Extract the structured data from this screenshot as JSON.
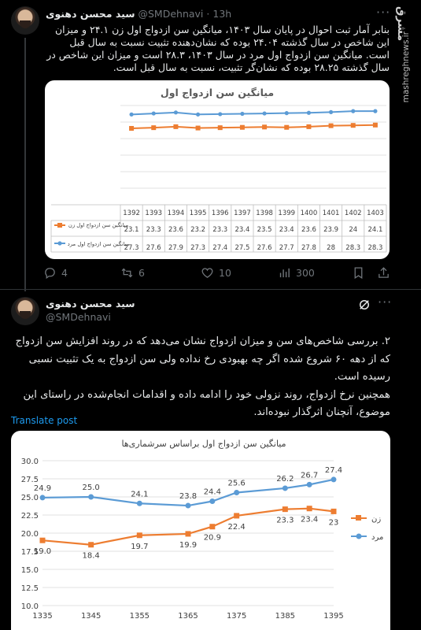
{
  "tweet1": {
    "author_name": "سید محسن دهنوی",
    "handle": "@SMDehnavi",
    "dot": "·",
    "time": "13h",
    "more": "···",
    "text": "بنابر آمار ثبت احوال در پایان سال ۱۴۰۳، میانگین سن ازدواج اول زن ۲۴.۱ و میزان این شاخص در سال گذشته ۲۴.۰۴ بوده که نشان‌دهنده تثبیت نسبت به سال قبل است. میانگین سن ازدواج اول مرد در سال ۱۴۰۳، ۲۸.۳ است و میزان این شاخص در سال گذشته ۲۸.۲۵ بوده که نشان‌گر تثبیت، نسبت به سال قبل است.",
    "actions": {
      "replies": "4",
      "reposts": "6",
      "likes": "10",
      "views": "300"
    }
  },
  "watermark": {
    "logo": "مشرق",
    "site": "mashreghnews.ir"
  },
  "chart1": {
    "title": "میانگین سن ازدواج اول",
    "row_female_label": "میانگین سن ازدواج اول زن",
    "row_male_label": "میانگین سن ازدواج اول مرد",
    "colors": {
      "female": "#ed7d31",
      "male": "#5b9bd5"
    }
  },
  "tweet2": {
    "author_name": "سید محسن دهنوی",
    "handle": "@SMDehnavi",
    "more": "···",
    "text_p1": "۲. بررسی شاخص‌های سن و میزان ازدواج نشان می‌دهد که در روند افزایش سن ازدواج که از دهه ۶۰ شروع شده اگر چه بهبودی رخ نداده ولی سن ازدواج به یک تثبیت نسبی رسیده است.",
    "text_p2": "همچنین نرخ ازدواج، روند نزولی خود را ادامه داده و اقدامات انجام‌شده در راستای این موضوع، آنچنان اثرگذار نبوده‌اند.",
    "translate": "Translate post"
  },
  "chart2": {
    "title": "میانگین سن ازدواج اول براساس سرشماری‌ها",
    "legend_female": "زن",
    "legend_male": "مرد"
  },
  "chart_data": [
    {
      "type": "line",
      "title": "میانگین سن ازدواج اول",
      "x": [
        "1392",
        "1393",
        "1394",
        "1395",
        "1396",
        "1397",
        "1398",
        "1399",
        "1400",
        "1401",
        "1402",
        "1403"
      ],
      "series": [
        {
          "name": "میانگین سن ازدواج اول زن",
          "values": [
            23.1,
            23.3,
            23.6,
            23.2,
            23.3,
            23.4,
            23.5,
            23.4,
            23.6,
            23.9,
            24,
            24.1
          ],
          "color": "#ed7d31"
        },
        {
          "name": "میانگین سن ازدواج اول مرد",
          "values": [
            27.3,
            27.6,
            27.9,
            27.3,
            27.4,
            27.5,
            27.6,
            27.7,
            27.8,
            28,
            28.3,
            28.3
          ],
          "color": "#5b9bd5"
        }
      ],
      "ylim": [
        0,
        30
      ],
      "yticks": [],
      "grid": true,
      "legend": "data-table"
    },
    {
      "type": "line",
      "title": "میانگین سن ازدواج اول براساس سرشماری‌ها",
      "x": [
        1335,
        1345,
        1355,
        1365,
        1370,
        1375,
        1385,
        1390,
        1395
      ],
      "xticks": [
        "1335",
        "1345",
        "1355",
        "1365",
        "1375",
        "1385",
        "1395"
      ],
      "series": [
        {
          "name": "زن",
          "values": [
            19.0,
            18.4,
            19.7,
            19.9,
            20.9,
            22.4,
            23.3,
            23.4,
            23
          ],
          "labels": [
            "19.0",
            "18.4",
            "19.7",
            "19.9",
            "20.9",
            "22.4",
            "23.3",
            "23.4",
            "23"
          ],
          "color": "#ed7d31"
        },
        {
          "name": "مرد",
          "values": [
            24.9,
            25.0,
            24.1,
            23.8,
            24.4,
            25.6,
            26.2,
            26.7,
            27.4
          ],
          "labels": [
            "24.9",
            "25.0",
            "24.1",
            "23.8",
            "24.4",
            "25.6",
            "26.2",
            "26.7",
            "27.4"
          ],
          "color": "#5b9bd5"
        }
      ],
      "ylim": [
        10,
        30
      ],
      "yticks": [
        "10.0",
        "12.5",
        "15.0",
        "17.5",
        "20.0",
        "22.5",
        "25.0",
        "27.5",
        "30.0"
      ],
      "grid": true,
      "legend": "right"
    }
  ]
}
